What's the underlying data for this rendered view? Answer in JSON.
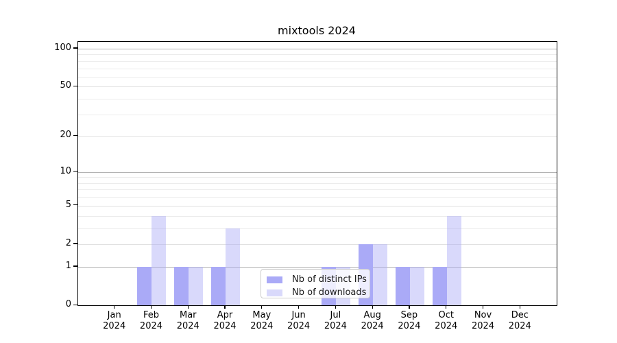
{
  "chart_data": {
    "type": "bar",
    "title": "mixtools 2024",
    "categories": [
      "Jan",
      "Feb",
      "Mar",
      "Apr",
      "May",
      "Jun",
      "Jul",
      "Aug",
      "Sep",
      "Oct",
      "Nov",
      "Dec"
    ],
    "year": "2024",
    "series": [
      {
        "name": "Nb of distinct IPs",
        "color": "#aaaaf7",
        "alpha": 1.0,
        "values": [
          0,
          1,
          1,
          1,
          0,
          0,
          1,
          2,
          1,
          1,
          0,
          0
        ]
      },
      {
        "name": "Nb of downloads",
        "color": "#aaaaf7",
        "alpha": 0.45,
        "values": [
          0,
          4,
          1,
          3,
          0,
          0,
          1,
          2,
          1,
          4,
          0,
          0
        ]
      }
    ],
    "yscale": "log10(1+v)",
    "ylim": [
      0,
      100
    ],
    "yticks": [
      0,
      1,
      2,
      5,
      10,
      20,
      50,
      100
    ],
    "minor_yticks": [
      3,
      4,
      6,
      7,
      8,
      9,
      30,
      40,
      60,
      70,
      80,
      90
    ],
    "decade_ticks": [
      1,
      10,
      100
    ],
    "grid": true,
    "legend_position": "lower-center"
  },
  "colors": {
    "decade_gridline": "#b3b3b3",
    "major_gridline": "#e0e0e0",
    "minor_gridline": "#ececec"
  }
}
